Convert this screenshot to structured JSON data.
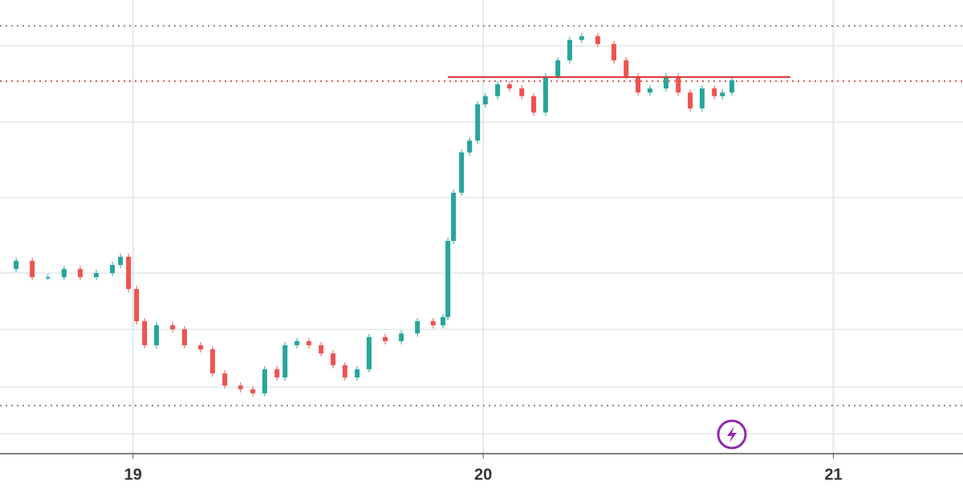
{
  "chart_data": {
    "type": "candlestick",
    "x": [
      18.62,
      18.666,
      18.712,
      18.757,
      18.803,
      18.849,
      18.895,
      18.941,
      18.964,
      18.987,
      19.01,
      19.033,
      19.067,
      19.113,
      19.147,
      19.193,
      19.227,
      19.262,
      19.307,
      19.342,
      19.376,
      19.411,
      19.434,
      19.468,
      19.502,
      19.537,
      19.571,
      19.605,
      19.64,
      19.674,
      19.72,
      19.766,
      19.812,
      19.857,
      19.885,
      19.899,
      19.915,
      19.938,
      19.961,
      19.984,
      20.006,
      20.041,
      20.075,
      20.11,
      20.144,
      20.178,
      20.213,
      20.247,
      20.281,
      20.327,
      20.373,
      20.408,
      20.442,
      20.476,
      20.522,
      20.557,
      20.591,
      20.625,
      20.66,
      20.683,
      20.71
    ],
    "values": [
      40.7,
      42.5,
      38.9,
      38.9,
      40.7,
      38.9,
      39.8,
      41.6,
      43.4,
      36.3,
      29.2,
      23.9,
      28.3,
      27.4,
      23.9,
      23.0,
      17.7,
      15.0,
      14.2,
      13.3,
      18.6,
      16.8,
      23.9,
      24.8,
      23.9,
      22.1,
      19.5,
      16.8,
      18.6,
      25.7,
      24.8,
      26.5,
      29.2,
      28.3,
      30.1,
      46.9,
      57.5,
      66.4,
      69.0,
      77.0,
      78.8,
      81.4,
      80.5,
      78.8,
      75.2,
      83.2,
      86.7,
      91.2,
      92.0,
      90.3,
      86.7,
      83.2,
      79.6,
      80.5,
      83.2,
      79.6,
      76.1,
      80.5,
      78.8,
      79.6,
      82.3
    ],
    "up_color": "#26a69a",
    "down_color": "#ef5350",
    "xlim": [
      18.62,
      21.37
    ],
    "xticks": [
      19,
      20,
      21
    ],
    "ylim": [
      0,
      100
    ],
    "grid_lines": [
      89.9,
      73.1,
      56.5,
      39.8,
      27.4,
      14.7,
      4.4
    ],
    "levels": [
      {
        "value": 94.3,
        "color": "#888888"
      },
      {
        "value": 82.1,
        "color": "#e05050"
      },
      {
        "value": 10.6,
        "color": "#888888"
      }
    ],
    "resistance": {
      "value": 83.0,
      "x": [
        19.899,
        20.877
      ],
      "color": "#d93a3a"
    }
  }
}
